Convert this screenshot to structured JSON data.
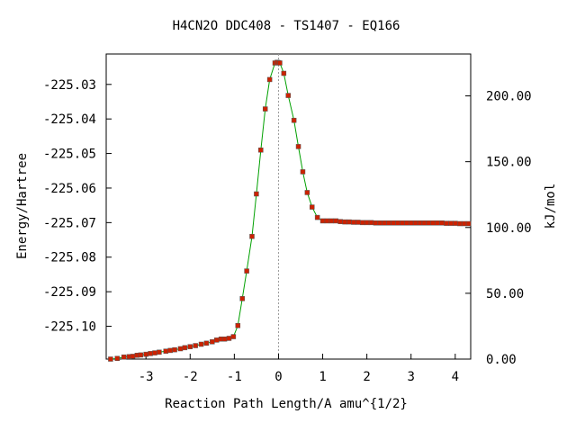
{
  "chart_data": {
    "type": "line",
    "title": "H4CN2O   DDC408 - TS1407 - EQ166",
    "xlabel": "Reaction Path Length/A amu^{1/2}",
    "ylabel": "Energy/Hartree",
    "y2label": "kJ/mol",
    "xlim": [
      -3.9,
      4.35
    ],
    "ylim": [
      -225.1095,
      -225.0212
    ],
    "x_ticks": [
      -3,
      -2,
      -1,
      0,
      1,
      2,
      3,
      4
    ],
    "x_tick_labels": [
      "-3",
      "-2",
      "-1",
      "0",
      "1",
      "2",
      "3",
      "4"
    ],
    "y_ticks": [
      -225.03,
      -225.04,
      -225.05,
      -225.06,
      -225.07,
      -225.08,
      -225.09,
      -225.1
    ],
    "y_tick_labels": [
      "-225.03",
      "-225.04",
      "-225.05",
      "-225.06",
      "-225.07",
      "-225.08",
      "-225.09",
      "-225.10"
    ],
    "y2_ticks": [
      0,
      50,
      100,
      150,
      200
    ],
    "y2_tick_labels": [
      "0.00",
      "50.00",
      "100.00",
      "150.00",
      "200.00"
    ],
    "y2_zero_energy": -225.1095,
    "hartree_to_kj_per_mol": 2625.5,
    "ts_marker_x": 0,
    "grid": false,
    "colors": {
      "line": "#00a000",
      "marker": "#cc2200",
      "axes": "#000000",
      "ts_line": "#999999"
    },
    "series": [
      {
        "x": [
          -3.8,
          -3.65,
          -3.5,
          -3.38,
          -3.3,
          -3.2,
          -3.12,
          -3.0,
          -2.9,
          -2.8,
          -2.7,
          -2.55,
          -2.45,
          -2.35,
          -2.22,
          -2.12,
          -2.0,
          -1.88,
          -1.75,
          -1.63,
          -1.5,
          -1.4,
          -1.3,
          -1.22,
          -1.12,
          -1.02,
          -0.92,
          -0.82,
          -0.72,
          -0.6,
          -0.5,
          -0.4,
          -0.3,
          -0.2,
          -0.08,
          -0.03,
          0.0,
          0.03,
          0.12,
          0.22,
          0.35,
          0.45,
          0.55,
          0.65,
          0.76,
          0.88,
          1.0,
          1.1,
          1.2,
          1.3,
          1.4,
          1.5,
          1.6,
          1.7,
          1.8,
          1.9,
          2.0,
          2.1,
          2.2,
          2.3,
          2.4,
          2.5,
          2.6,
          2.7,
          2.8,
          2.9,
          3.0,
          3.1,
          3.2,
          3.3,
          3.4,
          3.5,
          3.6,
          3.7,
          3.8,
          3.9,
          4.0,
          4.1,
          4.2,
          4.3
        ],
        "y": [
          -225.1095,
          -225.1093,
          -225.1089,
          -225.1088,
          -225.1087,
          -225.1084,
          -225.1083,
          -225.1081,
          -225.1079,
          -225.1077,
          -225.1075,
          -225.1072,
          -225.107,
          -225.1068,
          -225.1065,
          -225.1062,
          -225.1059,
          -225.1056,
          -225.1052,
          -225.1049,
          -225.1045,
          -225.104,
          -225.1037,
          -225.1037,
          -225.1035,
          -225.103,
          -225.0998,
          -225.092,
          -225.084,
          -225.074,
          -225.0617,
          -225.049,
          -225.0371,
          -225.0286,
          -225.0238,
          -225.0236,
          -225.0237,
          -225.0238,
          -225.0268,
          -225.0332,
          -225.0404,
          -225.048,
          -225.0553,
          -225.0613,
          -225.0655,
          -225.0685,
          -225.0695,
          -225.0695,
          -225.0695,
          -225.0695,
          -225.0697,
          -225.0698,
          -225.0698,
          -225.0699,
          -225.0699,
          -225.07,
          -225.07,
          -225.07,
          -225.0701,
          -225.0701,
          -225.0701,
          -225.0701,
          -225.0701,
          -225.0701,
          -225.0701,
          -225.0701,
          -225.0701,
          -225.0701,
          -225.0701,
          -225.0701,
          -225.0701,
          -225.0701,
          -225.0701,
          -225.0701,
          -225.0702,
          -225.0702,
          -225.0702,
          -225.0703,
          -225.0703,
          -225.0703
        ]
      }
    ]
  }
}
